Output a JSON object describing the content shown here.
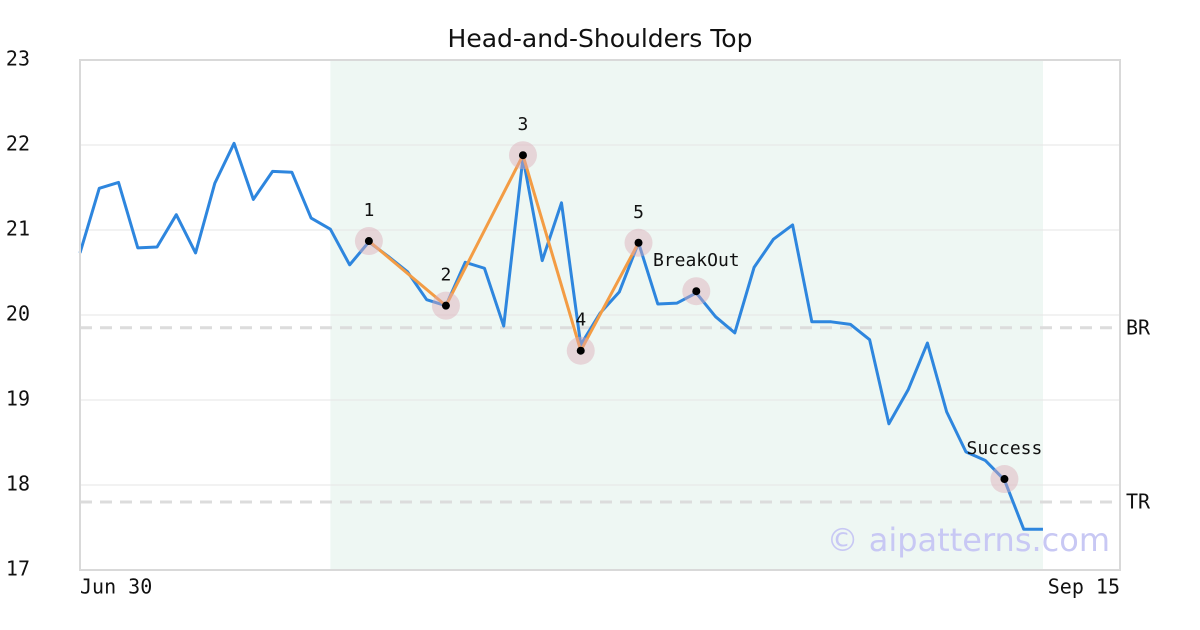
{
  "chart_data": {
    "type": "line",
    "title": "Head-and-Shoulders Top",
    "x": [
      0,
      1,
      2,
      3,
      4,
      5,
      6,
      7,
      8,
      9,
      10,
      11,
      12,
      13,
      14,
      15,
      16,
      17,
      18,
      19,
      20,
      21,
      22,
      23,
      24,
      25,
      26,
      27,
      28,
      29,
      30,
      31,
      32,
      33,
      34,
      35,
      36,
      37,
      38,
      39,
      40,
      41,
      42,
      43,
      44,
      45,
      46,
      47,
      48,
      49,
      50
    ],
    "values": [
      20.73,
      21.49,
      21.56,
      20.79,
      20.8,
      21.18,
      20.73,
      21.55,
      22.02,
      21.36,
      21.69,
      21.68,
      21.14,
      21.01,
      20.59,
      20.86,
      20.69,
      20.51,
      20.18,
      20.11,
      20.62,
      20.55,
      19.87,
      21.85,
      20.64,
      21.32,
      19.65,
      20.02,
      20.27,
      20.85,
      20.13,
      20.14,
      20.26,
      19.98,
      19.79,
      20.56,
      20.89,
      21.06,
      19.92,
      19.92,
      19.89,
      19.71,
      18.72,
      19.12,
      19.67,
      18.86,
      18.39,
      18.29,
      18.06,
      17.48,
      17.48
    ],
    "color": "#2e86de",
    "xlim": [
      0,
      54
    ],
    "xticks": [
      {
        "value": 0,
        "label": "Jun 30"
      },
      {
        "value": 54,
        "label": "Sep 15"
      }
    ],
    "ylim": [
      17,
      23
    ],
    "yticks": [
      17,
      18,
      19,
      20,
      21,
      22,
      23
    ],
    "grid": true,
    "highlight": {
      "xlim": [
        13,
        50
      ],
      "color": "#eef7f3"
    },
    "pattern": {
      "color": "#f39c44",
      "points": [
        {
          "label": "1",
          "x": 15,
          "y": 20.87
        },
        {
          "label": "2",
          "x": 19,
          "y": 20.11
        },
        {
          "label": "3",
          "x": 23,
          "y": 21.88
        },
        {
          "label": "4",
          "x": 26,
          "y": 19.58
        },
        {
          "label": "5",
          "x": 29,
          "y": 20.85
        }
      ]
    },
    "annotations": [
      {
        "label": "BreakOut",
        "x": 32,
        "y": 20.28
      },
      {
        "label": "Success",
        "x": 48,
        "y": 18.07
      }
    ],
    "hlines": [
      {
        "label": "BR",
        "value": 19.85
      },
      {
        "label": "TR",
        "value": 17.8
      }
    ],
    "watermark": "© aipatterns.com"
  }
}
